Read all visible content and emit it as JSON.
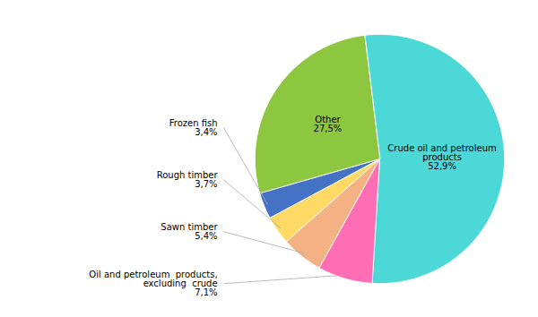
{
  "chart_data": {
    "type": "pie",
    "categories": [
      "Crude oil and petroleum\nproducts",
      "Oil and petroleum  products,\nexcluding  crude",
      "Sawn timber",
      "Rough timber",
      "Frozen fish",
      "Other"
    ],
    "values": [
      52.9,
      7.1,
      5.4,
      3.7,
      3.4,
      27.5
    ],
    "value_labels": [
      "52,9%",
      "7,1%",
      "5,4%",
      "3,7%",
      "3,4%",
      "27,5%"
    ],
    "colors": [
      "#4DD8D8",
      "#FF6EB4",
      "#F4B183",
      "#FFD966",
      "#4472C4",
      "#8DC63F"
    ],
    "data_labels": true
  }
}
